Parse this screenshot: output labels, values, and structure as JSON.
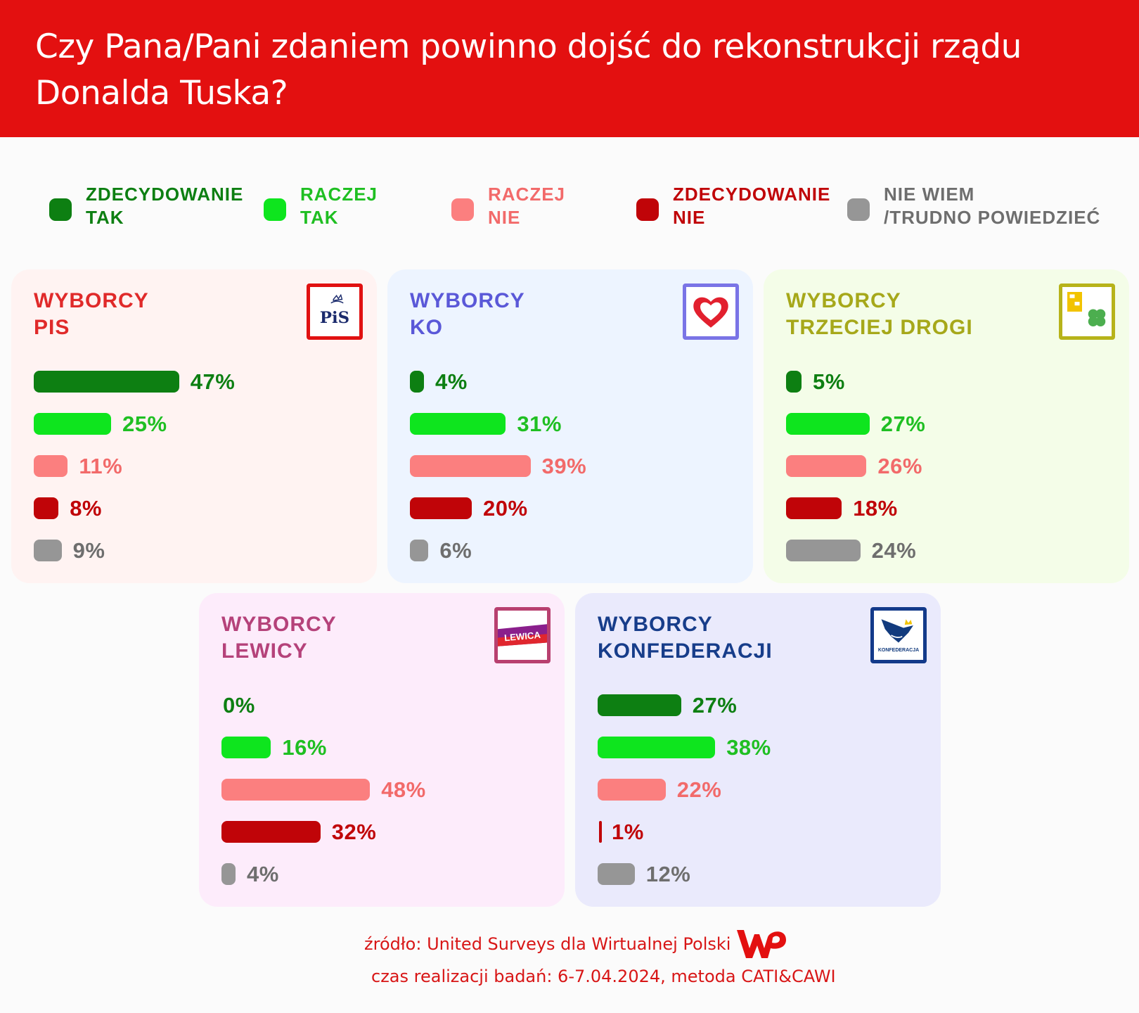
{
  "header": {
    "title": "Czy Pana/Pani zdaniem powinno dojść do rekonstrukcji rządu Donalda Tuska?"
  },
  "colors": {
    "header_bg": "#e31010",
    "zdecydowanie_tak": "#0d7f12",
    "raczej_tak": "#0ee51e",
    "raczej_nie": "#fb7f7f",
    "zdecydowanie_nie": "#c00408",
    "nie_wiem": "#969696"
  },
  "legend": [
    {
      "label": "ZDECYDOWANIE\nTAK",
      "color": "#0d7f12",
      "text_color": "#0d7f12"
    },
    {
      "label": "RACZEJ\nTAK",
      "color": "#0ee51e",
      "text_color": "#1fbf22"
    },
    {
      "label": "RACZEJ\nNIE",
      "color": "#fb7f7f",
      "text_color": "#f26a6a"
    },
    {
      "label": "ZDECYDOWANIE\nNIE",
      "color": "#c00408",
      "text_color": "#c00408"
    },
    {
      "label": "NIE WIEM\n/TRUDNO POWIEDZIEĆ",
      "color": "#969696",
      "text_color": "#6e6e6e"
    }
  ],
  "panels": [
    {
      "title": "WYBORCY\nPIS",
      "logo": "pis-logo",
      "logo_text": "PiS",
      "title_color": "#e02a2a",
      "bg": "#fff3f2",
      "border": "#e11111"
    },
    {
      "title": "WYBORCY\nKO",
      "logo": "ko-heart-logo",
      "title_color": "#5a58d8",
      "bg": "#edf4ff",
      "border": "#7a74e6"
    },
    {
      "title": "WYBORCY\nTRZECIEJ DROGI",
      "logo": "trzecia-droga-logo",
      "title_color": "#a6a81a",
      "bg": "#f4fde8",
      "border": "#b7b31a"
    },
    {
      "title": "WYBORCY\nLEWICY",
      "logo": "lewica-logo",
      "logo_text": "LEWICA",
      "title_color": "#b5427a",
      "bg": "#fdecfb",
      "border": "#b8406f"
    },
    {
      "title": "WYBORCY\nKONFEDERACJI",
      "logo": "konfederacja-logo",
      "logo_text": "KONFEDERACJA",
      "title_color": "#173d8a",
      "bg": "#eaeafc",
      "border": "#133a8a"
    }
  ],
  "chart_data": {
    "type": "bar",
    "title": "Czy Pana/Pani zdaniem powinno dojść do rekonstrukcji rządu Donalda Tuska?",
    "categories": [
      "ZDECYDOWANIE TAK",
      "RACZEJ TAK",
      "RACZEJ NIE",
      "ZDECYDOWANIE NIE",
      "NIE WIEM /TRUDNO POWIEDZIEĆ"
    ],
    "series": [
      {
        "name": "WYBORCY PIS",
        "values": [
          47,
          25,
          11,
          8,
          9
        ],
        "labels": [
          "47%",
          "25%",
          "11%",
          "8%",
          "9%"
        ]
      },
      {
        "name": "WYBORCY KO",
        "values": [
          4,
          31,
          39,
          20,
          6
        ],
        "labels": [
          "4%",
          "31%",
          "39%",
          "20%",
          "6%"
        ]
      },
      {
        "name": "WYBORCY TRZECIEJ DROGI",
        "values": [
          5,
          27,
          26,
          18,
          24
        ],
        "labels": [
          "5%",
          "27%",
          "26%",
          "18%",
          "24%"
        ]
      },
      {
        "name": "WYBORCY LEWICY",
        "values": [
          0,
          16,
          48,
          32,
          4
        ],
        "labels": [
          "0%",
          "16%",
          "48%",
          "32%",
          "4%"
        ]
      },
      {
        "name": "WYBORCY KONFEDERACJI",
        "values": [
          27,
          38,
          22,
          1,
          12
        ],
        "labels": [
          "27%",
          "38%",
          "22%",
          "1%",
          "12%"
        ]
      }
    ],
    "value_text_colors": [
      "#0d7f12",
      "#1fbf22",
      "#f26a6a",
      "#c00408",
      "#6e6e6e"
    ]
  },
  "footer": {
    "source": "źródło: United Surveys dla Wirtualnej Polski",
    "method": "czas realizacji badań: 6-7.04.2024, metoda CATI&CAWI",
    "logo": "wp-logo"
  }
}
